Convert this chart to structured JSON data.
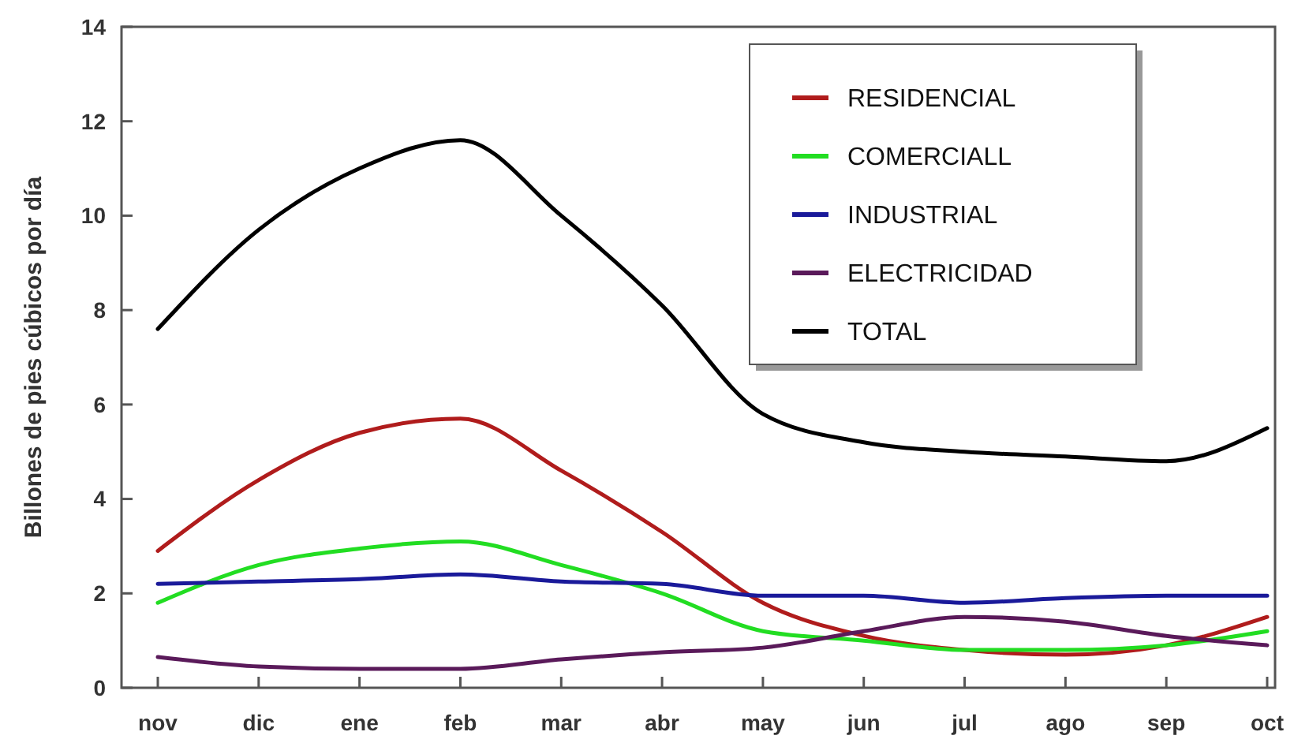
{
  "chart_data": {
    "type": "line",
    "ylabel": "Billones de pies cúbicos por día",
    "categories": [
      "nov",
      "dic",
      "ene",
      "feb",
      "mar",
      "abr",
      "may",
      "jun",
      "jul",
      "ago",
      "sep",
      "oct"
    ],
    "ylim": [
      0,
      14
    ],
    "yticks": [
      0,
      2,
      4,
      6,
      8,
      10,
      12,
      14
    ],
    "grid": false,
    "legend": "top right",
    "marker": "none",
    "line_style": "solid",
    "series": [
      {
        "name": "RESIDENCIAL",
        "color": "#b01c1c",
        "values": [
          2.9,
          4.4,
          5.4,
          5.7,
          4.6,
          3.3,
          1.8,
          1.1,
          0.8,
          0.7,
          0.9,
          1.5
        ]
      },
      {
        "name": "COMERCIALL",
        "color": "#22dd22",
        "values": [
          1.8,
          2.6,
          2.95,
          3.1,
          2.6,
          2.0,
          1.2,
          1.0,
          0.8,
          0.8,
          0.9,
          1.2
        ]
      },
      {
        "name": "INDUSTRIAL",
        "color": "#1a1a9a",
        "values": [
          2.2,
          2.25,
          2.3,
          2.4,
          2.25,
          2.2,
          1.95,
          1.95,
          1.8,
          1.9,
          1.95,
          1.95
        ]
      },
      {
        "name": "ELECTRICIDAD",
        "color": "#5a1a5a",
        "values": [
          0.65,
          0.45,
          0.4,
          0.4,
          0.6,
          0.75,
          0.85,
          1.2,
          1.5,
          1.4,
          1.1,
          0.9
        ]
      },
      {
        "name": "TOTAL",
        "color": "#000000",
        "values": [
          7.6,
          9.7,
          11.0,
          11.6,
          10.0,
          8.1,
          5.8,
          5.2,
          5.0,
          4.9,
          4.8,
          5.5
        ]
      }
    ]
  }
}
